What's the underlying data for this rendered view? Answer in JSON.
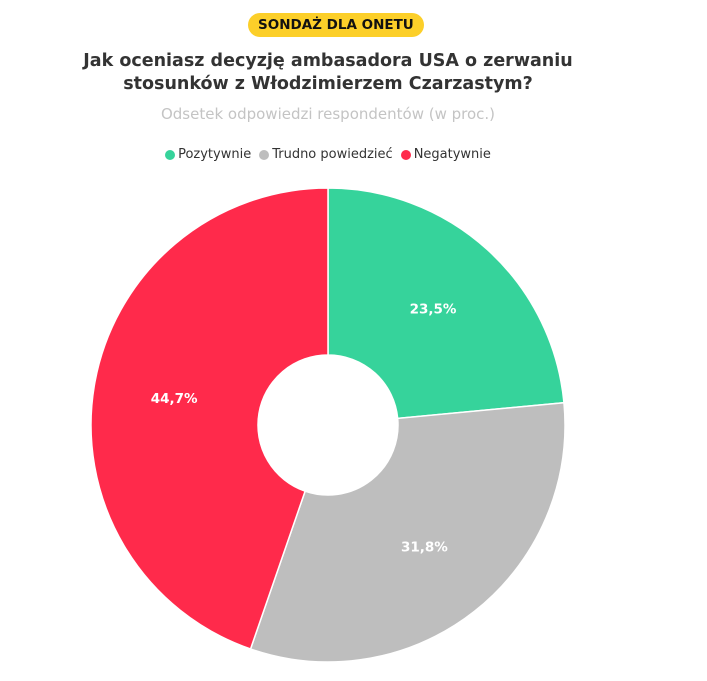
{
  "badge": "SONDAŻ DLA ONETU",
  "chart_data": {
    "type": "pie",
    "variant": "donut",
    "title": "Jak oceniasz decyzję ambasadora USA o zerwaniu stosunków z Włodzimierzem Czarzastym?",
    "subtitle": "Odsetek odpowiedzi respondentów (w proc.)",
    "legend_position": "top",
    "categories": [
      "Pozytywnie",
      "Trudno powiedzieć",
      "Negatywnie"
    ],
    "values": [
      23.5,
      31.8,
      44.7
    ],
    "data_labels": [
      "23,5%",
      "31,8%",
      "44,7%"
    ],
    "colors": [
      "#36d39b",
      "#bebebe",
      "#ff2a4b"
    ]
  },
  "badge_color": "#fccf29"
}
